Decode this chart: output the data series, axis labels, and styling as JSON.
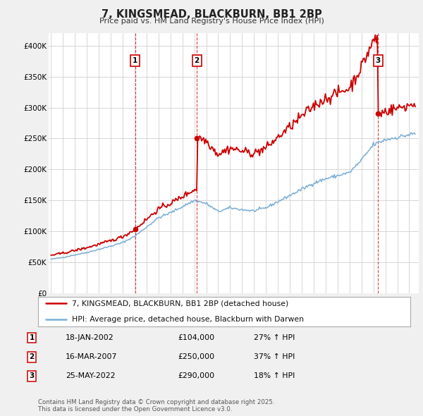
{
  "title": "7, KINGSMEAD, BLACKBURN, BB1 2BP",
  "subtitle": "Price paid vs. HM Land Registry's House Price Index (HPI)",
  "ylim": [
    0,
    420000
  ],
  "yticks": [
    0,
    50000,
    100000,
    150000,
    200000,
    250000,
    300000,
    350000,
    400000
  ],
  "ytick_labels": [
    "£0",
    "£50K",
    "£100K",
    "£150K",
    "£200K",
    "£250K",
    "£300K",
    "£350K",
    "£400K"
  ],
  "xlim_start": 1994.8,
  "xlim_end": 2025.8,
  "transactions": [
    {
      "num": 1,
      "date": "18-JAN-2002",
      "price": 104000,
      "year": 2002.04,
      "hpi_pct": "27% ↑ HPI"
    },
    {
      "num": 2,
      "date": "16-MAR-2007",
      "price": 250000,
      "year": 2007.21,
      "hpi_pct": "37% ↑ HPI"
    },
    {
      "num": 3,
      "date": "25-MAY-2022",
      "price": 290000,
      "year": 2022.4,
      "hpi_pct": "18% ↑ HPI"
    }
  ],
  "legend_line1": "7, KINGSMEAD, BLACKBURN, BB1 2BP (detached house)",
  "legend_line2": "HPI: Average price, detached house, Blackburn with Darwen",
  "footnote": "Contains HM Land Registry data © Crown copyright and database right 2025.\nThis data is licensed under the Open Government Licence v3.0.",
  "red_color": "#cc0000",
  "blue_color": "#7aaed6",
  "background_color": "#f0f0f0",
  "plot_bg_color": "#ffffff",
  "hpi_breakpoints": {
    "years": [
      1995.0,
      1996.0,
      1997.0,
      1998.0,
      1999.0,
      2000.0,
      2001.0,
      2002.0,
      2003.0,
      2004.0,
      2005.0,
      2006.0,
      2007.0,
      2008.0,
      2009.0,
      2010.0,
      2011.0,
      2012.0,
      2013.0,
      2014.0,
      2015.0,
      2016.0,
      2017.0,
      2018.0,
      2019.0,
      2020.0,
      2021.0,
      2022.0,
      2023.0,
      2024.0,
      2025.5
    ],
    "values": [
      55000,
      58000,
      62000,
      66000,
      71000,
      76000,
      82000,
      92000,
      107000,
      122000,
      130000,
      140000,
      150000,
      145000,
      132000,
      138000,
      135000,
      133000,
      138000,
      148000,
      158000,
      168000,
      178000,
      185000,
      190000,
      195000,
      215000,
      240000,
      248000,
      252000,
      258000
    ]
  }
}
